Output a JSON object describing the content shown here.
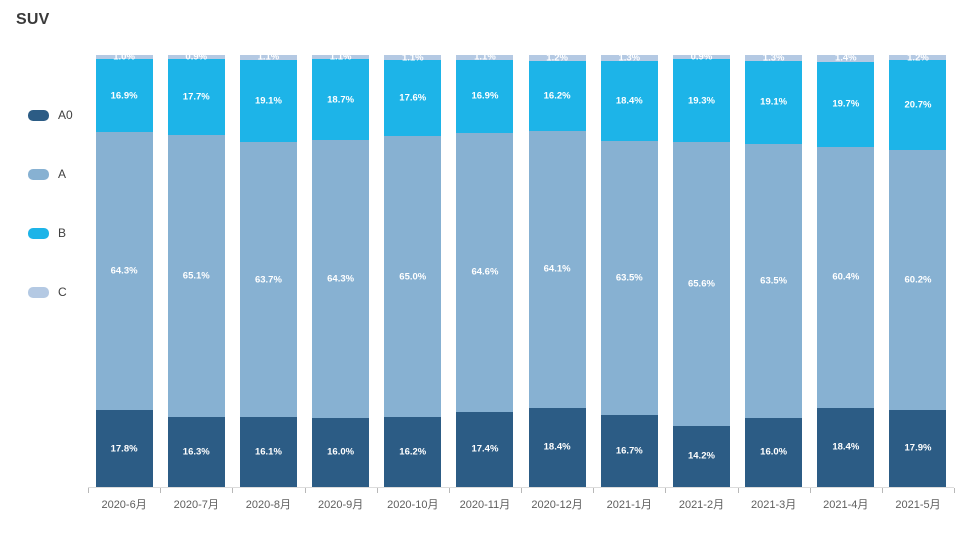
{
  "title": "SUV",
  "colors": {
    "series_a0": "#2c5c85",
    "series_a": "#87b1d2",
    "series_b": "#1db4e8",
    "series_c": "#b4c9e3",
    "title_text": "#3a3a3a",
    "axis_text": "#5e5e5e",
    "data_label_text": "#ffffff"
  },
  "legend": {
    "position": "left",
    "items": [
      {
        "label": "A0",
        "color": "#2c5c85"
      },
      {
        "label": "A",
        "color": "#87b1d2"
      },
      {
        "label": "B",
        "color": "#1db4e8"
      },
      {
        "label": "C",
        "color": "#b4c9e3"
      }
    ]
  },
  "chart_data": {
    "type": "bar",
    "variant": "stacked-100-percent-column",
    "title": "SUV",
    "xlabel": "",
    "ylabel": "",
    "ylim": [
      0,
      100
    ],
    "grid": false,
    "legend_position": "left",
    "value_suffix": "%",
    "categories": [
      "2020-6月",
      "2020-7月",
      "2020-8月",
      "2020-9月",
      "2020-10月",
      "2020-11月",
      "2020-12月",
      "2021-1月",
      "2021-2月",
      "2021-3月",
      "2021-4月",
      "2021-5月"
    ],
    "stack_order_bottom_to_top": [
      "A0",
      "A",
      "B",
      "C"
    ],
    "series": [
      {
        "name": "A0",
        "color": "#2c5c85",
        "values": [
          17.8,
          16.3,
          16.1,
          16.0,
          16.2,
          17.4,
          18.4,
          16.7,
          14.2,
          16.0,
          18.4,
          17.9
        ]
      },
      {
        "name": "A",
        "color": "#87b1d2",
        "values": [
          64.3,
          65.1,
          63.7,
          64.3,
          65.0,
          64.6,
          64.1,
          63.5,
          65.6,
          63.5,
          60.4,
          60.2
        ]
      },
      {
        "name": "B",
        "color": "#1db4e8",
        "values": [
          16.9,
          17.7,
          19.1,
          18.7,
          17.6,
          16.9,
          16.2,
          18.4,
          19.3,
          19.1,
          19.7,
          20.7
        ]
      },
      {
        "name": "C",
        "color": "#b4c9e3",
        "values": [
          1.0,
          0.9,
          1.1,
          1.1,
          1.1,
          1.1,
          1.2,
          1.3,
          0.9,
          1.3,
          1.4,
          1.2
        ]
      }
    ]
  }
}
